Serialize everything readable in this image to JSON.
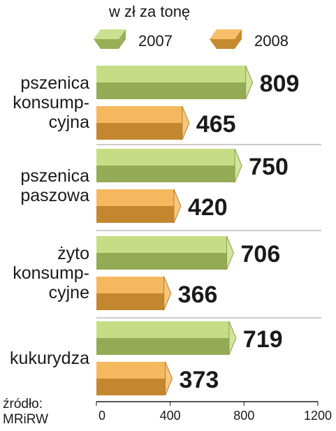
{
  "chart_data": {
    "type": "bar",
    "orientation": "horizontal",
    "subtitle": "w zł za tonę",
    "categories": [
      [
        "pszenica",
        "konsump-",
        "cyjna"
      ],
      [
        "pszenica",
        "paszowa"
      ],
      [
        "żyto",
        "konsump-",
        "cyjne"
      ],
      [
        "kukurydza"
      ]
    ],
    "series": [
      {
        "name": "2007",
        "values": [
          809,
          750,
          706,
          719
        ],
        "color": "#b9d56a"
      },
      {
        "name": "2008",
        "values": [
          465,
          420,
          366,
          373
        ],
        "color": "#f2a93b"
      }
    ],
    "xlim": [
      0,
      1200
    ],
    "xticks": [
      0,
      400,
      800,
      1200
    ],
    "legend_position": "top",
    "grid": false,
    "source_label": "źródło:",
    "source": "MRiRW"
  }
}
